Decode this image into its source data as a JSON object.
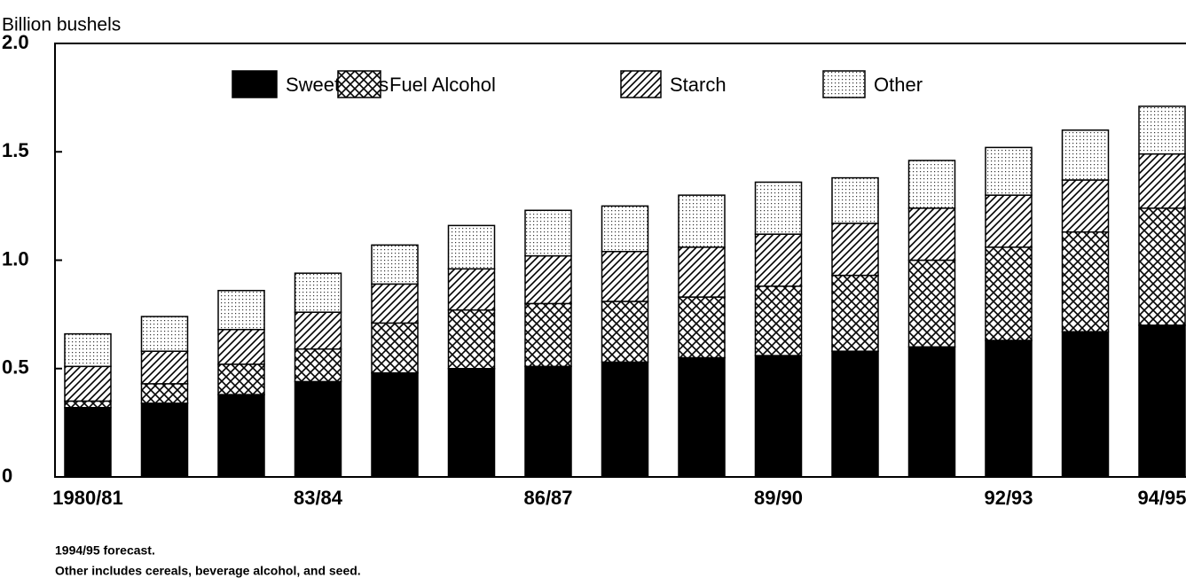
{
  "chart_data": {
    "type": "stacked_bar",
    "y_axis_label": "Billion bushels",
    "categories": [
      "1980/81",
      null,
      null,
      "83/84",
      null,
      null,
      "86/87",
      null,
      null,
      "89/90",
      null,
      null,
      "92/93",
      null,
      "94/95"
    ],
    "series": [
      {
        "name": "Sweeteners",
        "color": "#000000",
        "pattern": "solid",
        "values": [
          0.32,
          0.34,
          0.38,
          0.44,
          0.48,
          0.5,
          0.51,
          0.53,
          0.55,
          0.56,
          0.58,
          0.6,
          0.63,
          0.67,
          0.7
        ]
      },
      {
        "name": "Fuel Alcohol",
        "color": "#000000",
        "pattern": "crosshatch",
        "values": [
          0.03,
          0.09,
          0.14,
          0.15,
          0.23,
          0.27,
          0.29,
          0.28,
          0.28,
          0.32,
          0.35,
          0.4,
          0.43,
          0.46,
          0.54
        ]
      },
      {
        "name": "Starch",
        "color": "#000000",
        "pattern": "diagonal",
        "values": [
          0.16,
          0.15,
          0.16,
          0.17,
          0.18,
          0.19,
          0.22,
          0.23,
          0.23,
          0.24,
          0.24,
          0.24,
          0.24,
          0.24,
          0.25
        ]
      },
      {
        "name": "Other",
        "color": "#000000",
        "pattern": "dots",
        "values": [
          0.15,
          0.16,
          0.18,
          0.18,
          0.18,
          0.2,
          0.21,
          0.21,
          0.24,
          0.24,
          0.21,
          0.22,
          0.22,
          0.23,
          0.22
        ]
      }
    ],
    "ylim": [
      0,
      2
    ],
    "yticks": [
      0,
      0.5,
      {
        "value": 1,
        "label": "1.0"
      },
      1.5,
      {
        "value": 2,
        "label": "2.0"
      }
    ],
    "legend": "top",
    "notes": [
      "1994/95 forecast.",
      "Other includes cereals, beverage alcohol, and seed."
    ]
  }
}
